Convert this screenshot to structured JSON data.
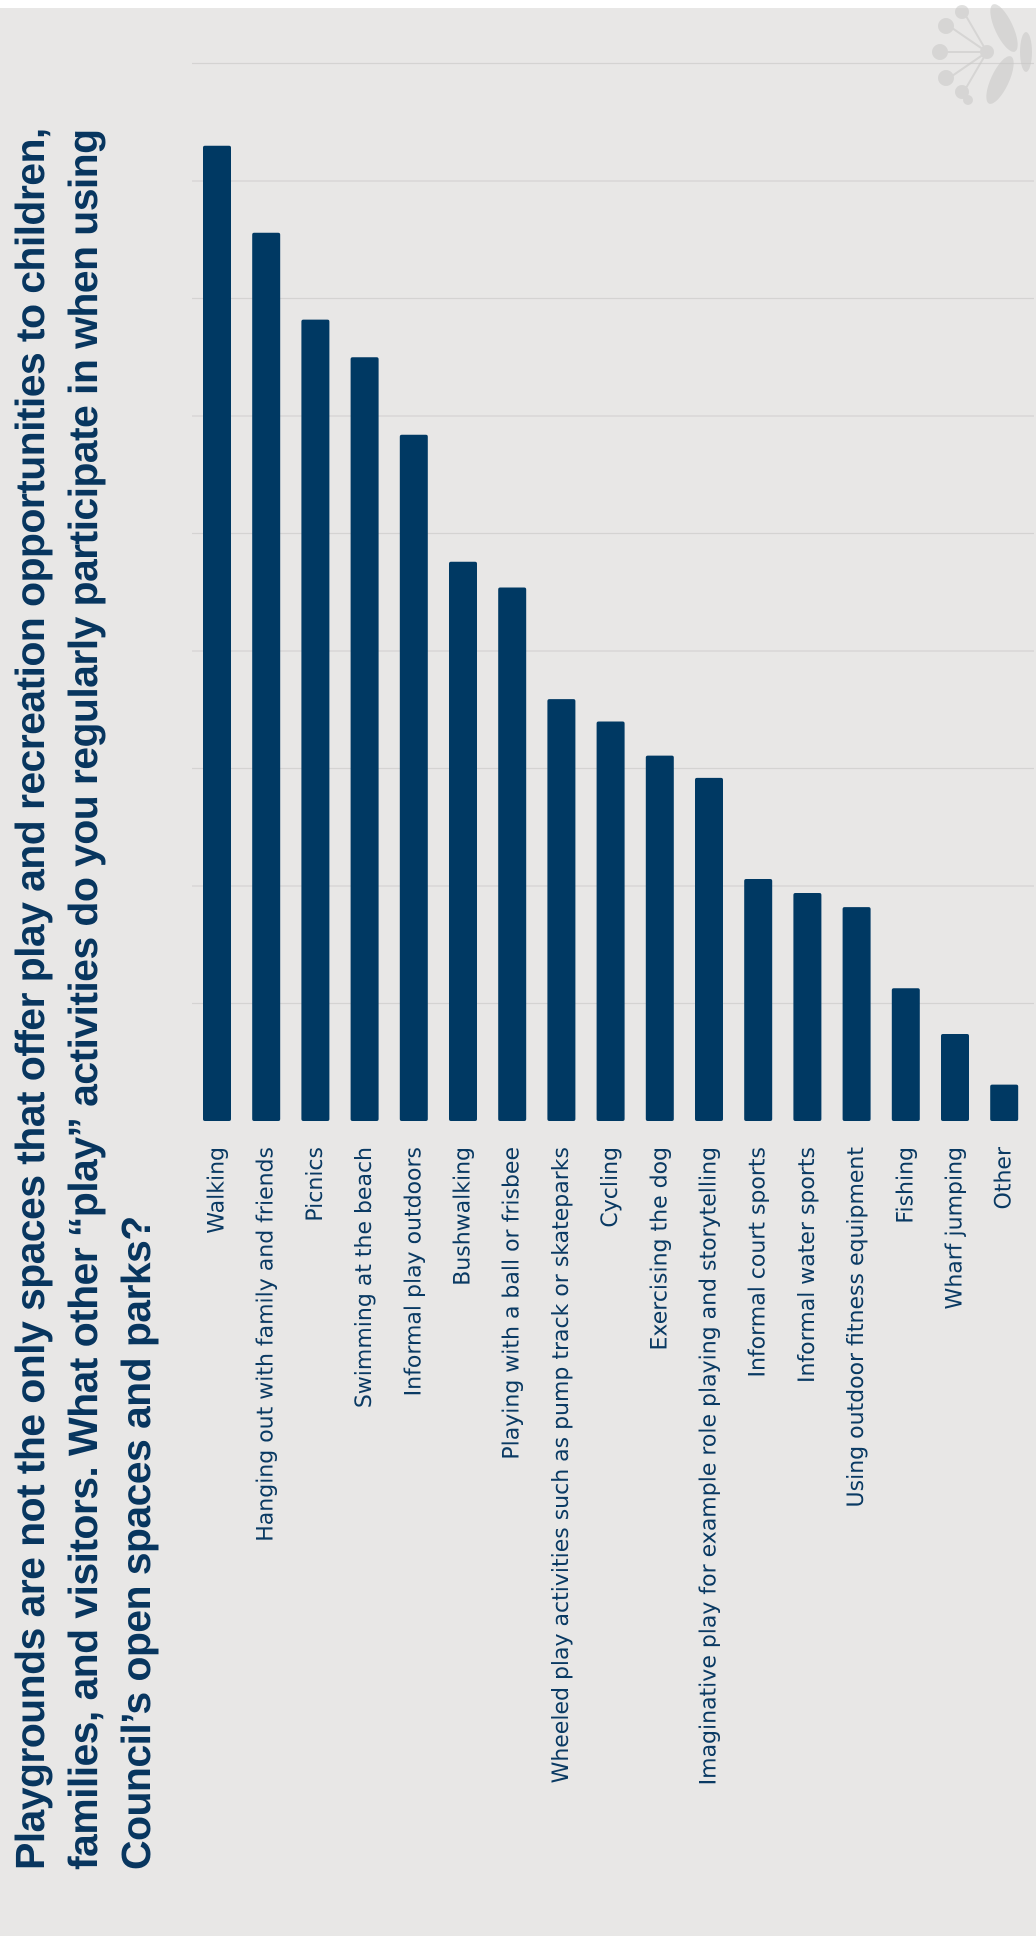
{
  "chart_data": {
    "type": "bar",
    "orientation": "vertical-bars, page rotated",
    "title": "Playgrounds are not the only spaces that offer play and recreation opportunities to children, families, and visitors. What other “play” activities do you regularly participate in when using Council’s open spaces and parks?",
    "categories": [
      "Walking",
      "Hanging out with family and friends",
      "Picnics",
      "Swimming at the beach",
      "Informal play outdoors",
      "Bushwalking",
      "Playing with a ball or frisbee",
      "Wheeled play activities such as pump track or skateparks",
      "Cycling",
      "Exercising the dog",
      "Imaginative play for example role playing and storytelling",
      "Informal court sports",
      "Informal water sports",
      "Using outdoor fitness equipment",
      "Fishing",
      "Wharf jumping",
      "Other"
    ],
    "values": [
      83,
      75.6,
      68.2,
      65,
      58.4,
      47.6,
      45.4,
      35.9,
      34,
      31.1,
      29.2,
      20.6,
      19.4,
      18.2,
      11.3,
      7.4,
      3.1
    ],
    "ylim": [
      0,
      90
    ],
    "grid": true,
    "tick_labels_shown": false,
    "bar_color": "#003963"
  },
  "colors": {
    "background": "#e8e7e6",
    "bar": "#003963",
    "title": "#08365f",
    "grid": "#d4d3d2"
  },
  "decoration": {
    "icon": "dandelion-icon"
  }
}
